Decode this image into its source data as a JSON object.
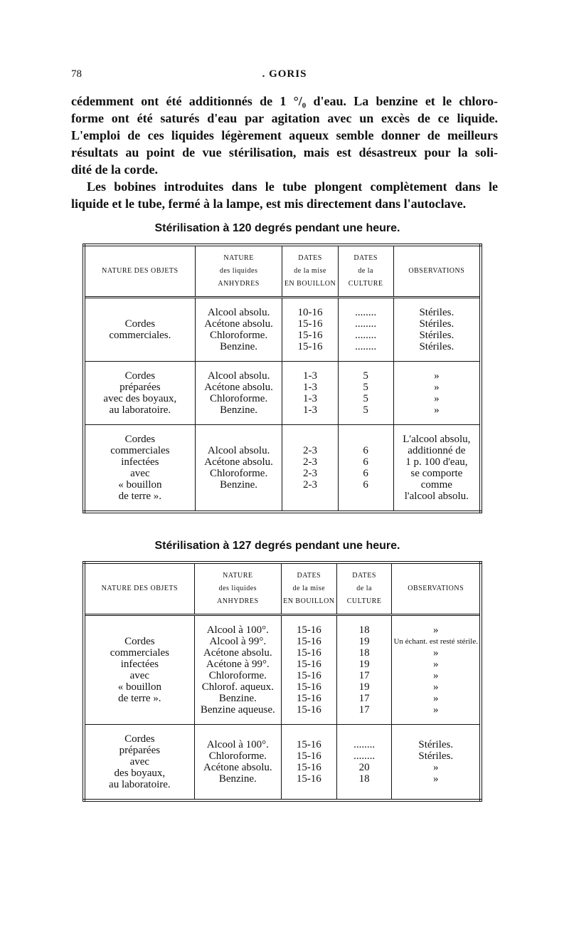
{
  "header": {
    "page_number": "78",
    "running_title": ". GORIS"
  },
  "paragraphs": [
    [
      "cédemment ont été additionnés de 1 °/₀ d'eau. La benzine et le chloro-",
      "forme ont été saturés d'eau par agitation avec un excès de ce liquide.",
      "L'emploi de ces liquides légèrement aqueux semble donner de meilleurs",
      "résultats au point de vue stérilisation, mais est désastreux pour la soli-",
      "dité de la corde."
    ],
    [
      "Les bobines introduites dans le tube plongent complètement dans le",
      "liquide et le tube, fermé à la lampe, est mis directement dans l'autoclave."
    ]
  ],
  "tables": [
    {
      "caption": "Stérilisation à 120 degrés pendant une heure.",
      "headers": [
        [
          "NATURE DES OBJETS"
        ],
        [
          "NATURE",
          "des liquides",
          "ANHYDRES"
        ],
        [
          "DATES",
          "de la mise",
          "EN BOUILLON"
        ],
        [
          "DATES",
          "de la",
          "CULTURE"
        ],
        [
          "OBSERVATIONS"
        ]
      ],
      "groups": [
        {
          "objects": [
            "Cordes",
            "commerciales."
          ],
          "liquids": [
            "Alcool absolu.",
            "Acétone absolu.",
            "Chloroforme.",
            "Benzine."
          ],
          "mise": [
            "10-16",
            "15-16",
            "15-16",
            "15-16"
          ],
          "culture": [
            "........",
            "........",
            "........",
            "........"
          ],
          "observations": [
            "Stériles.",
            "Stériles.",
            "Stériles.",
            "Stériles."
          ]
        },
        {
          "objects": [
            "Cordes",
            "préparées",
            "avec des boyaux,",
            "au laboratoire."
          ],
          "liquids": [
            "Alcool absolu.",
            "Acétone absolu.",
            "Chloroforme.",
            "Benzine."
          ],
          "mise": [
            "1-3",
            "1-3",
            "1-3",
            "1-3"
          ],
          "culture": [
            "5",
            "5",
            "5",
            "5"
          ],
          "observations": [
            "»",
            "»",
            "»",
            "»"
          ]
        },
        {
          "objects": [
            "Cordes",
            "commerciales",
            "infectées",
            "avec",
            "« bouillon",
            "de terre »."
          ],
          "liquids": [
            "Alcool absolu.",
            "Acétone absolu.",
            "Chloroforme.",
            "Benzine."
          ],
          "mise": [
            "2-3",
            "2-3",
            "2-3",
            "2-3"
          ],
          "culture": [
            "6",
            "6",
            "6",
            "6"
          ],
          "observations": [
            "L'alcool absolu,",
            "additionné de",
            "1 p. 100 d'eau,",
            "se comporte",
            "comme",
            "l'alcool absolu."
          ]
        }
      ]
    },
    {
      "caption": "Stérilisation à 127 degrés pendant une heure.",
      "headers": [
        [
          "NATURE DES OBJETS"
        ],
        [
          "NATURE",
          "des liquides",
          "ANHYDRES"
        ],
        [
          "DATES",
          "de la mise",
          "EN BOUILLON"
        ],
        [
          "DATES",
          "de la",
          "CULTURE"
        ],
        [
          "OBSERVATIONS"
        ]
      ],
      "groups": [
        {
          "objects": [
            "Cordes",
            "commerciales",
            "infectées",
            "avec",
            "« bouillon",
            "de terre »."
          ],
          "liquids": [
            "Alcool à 100°.",
            "Alcool à 99°.",
            "Acétone absolu.",
            "Acétone à 99°.",
            "Chloroforme.",
            "Chlorof. aqueux.",
            "Benzine.",
            "Benzine aqueuse."
          ],
          "mise": [
            "15-16",
            "15-16",
            "15-16",
            "15-16",
            "15-16",
            "15-16",
            "15-16",
            "15-16"
          ],
          "culture": [
            "18",
            "19",
            "18",
            "19",
            "17",
            "19",
            "17",
            "17"
          ],
          "observations": [
            "»",
            "Un échant. est resté stérile.",
            "»",
            "»",
            "»",
            "»",
            "»",
            "»"
          ]
        },
        {
          "objects": [
            "Cordes",
            "préparées",
            "avec",
            "des boyaux,",
            "au laboratoire."
          ],
          "liquids": [
            "Alcool à 100°.",
            "Chloroforme.",
            "Acétone absolu.",
            "Benzine."
          ],
          "mise": [
            "15-16",
            "15-16",
            "15-16",
            "15-16"
          ],
          "culture": [
            "........",
            "........",
            "20",
            "18"
          ],
          "observations": [
            "Stériles.",
            "Stériles.",
            "»",
            "»"
          ]
        }
      ]
    }
  ]
}
